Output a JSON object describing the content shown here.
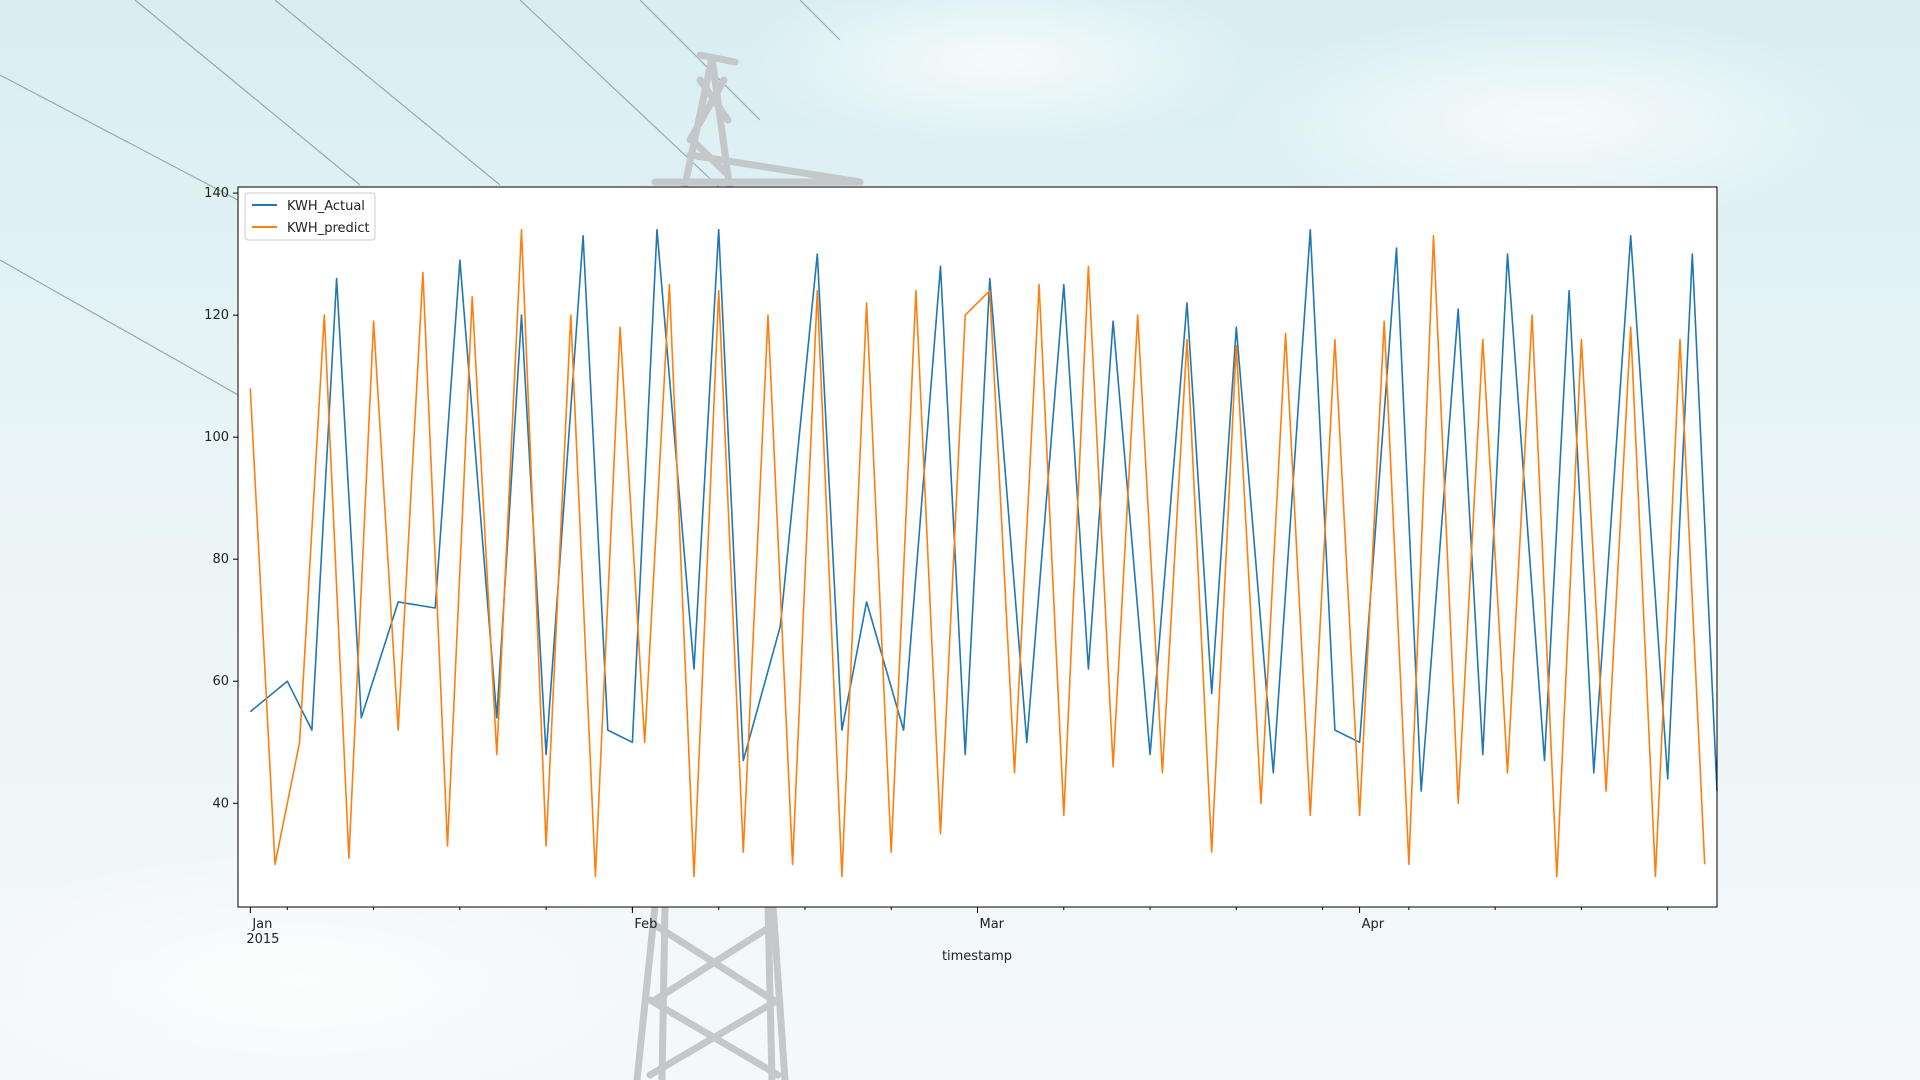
{
  "chart_data": {
    "type": "line",
    "title": "",
    "xlabel": "timestamp",
    "ylabel": "",
    "x_range": [
      "2014-12-31",
      "2015-04-30"
    ],
    "ylim": [
      23,
      141
    ],
    "yticks": [
      40,
      60,
      80,
      100,
      120,
      140
    ],
    "ytick_labels": [
      "40",
      "60",
      "80",
      "100",
      "120",
      "140"
    ],
    "xticks": [
      {
        "date": "2015-01-01",
        "label": "Jan",
        "sublabel": "2015"
      },
      {
        "date": "2015-02-01",
        "label": "Feb",
        "sublabel": ""
      },
      {
        "date": "2015-03-01",
        "label": "Mar",
        "sublabel": ""
      },
      {
        "date": "2015-04-01",
        "label": "Apr",
        "sublabel": ""
      }
    ],
    "legend_position": "top-left",
    "grid": false,
    "series": [
      {
        "name": "KWH_Actual",
        "color": "#1f77b4",
        "x": [
          "2015-01-01",
          "2015-01-04",
          "2015-01-06",
          "2015-01-08",
          "2015-01-10",
          "2015-01-13",
          "2015-01-16",
          "2015-01-18",
          "2015-01-21",
          "2015-01-23",
          "2015-01-25",
          "2015-01-28",
          "2015-01-30",
          "2015-02-01",
          "2015-02-03",
          "2015-02-06",
          "2015-02-08",
          "2015-02-10",
          "2015-02-13",
          "2015-02-16",
          "2015-02-18",
          "2015-02-20",
          "2015-02-23",
          "2015-02-26",
          "2015-02-28",
          "2015-03-02",
          "2015-03-05",
          "2015-03-08",
          "2015-03-10",
          "2015-03-12",
          "2015-03-15",
          "2015-03-18",
          "2015-03-20",
          "2015-03-22",
          "2015-03-25",
          "2015-03-28",
          "2015-03-30",
          "2015-04-01",
          "2015-04-04",
          "2015-04-06",
          "2015-04-09",
          "2015-04-11",
          "2015-04-13",
          "2015-04-16",
          "2015-04-18",
          "2015-04-20",
          "2015-04-23",
          "2015-04-26",
          "2015-04-28",
          "2015-04-30"
        ],
        "values": [
          55,
          60,
          52,
          126,
          54,
          73,
          72,
          129,
          54,
          120,
          48,
          133,
          52,
          50,
          134,
          62,
          134,
          47,
          69,
          130,
          52,
          73,
          52,
          128,
          48,
          126,
          50,
          125,
          62,
          119,
          48,
          122,
          58,
          118,
          45,
          134,
          52,
          50,
          131,
          42,
          121,
          48,
          130,
          47,
          124,
          45,
          133,
          44,
          130,
          42
        ]
      },
      {
        "name": "KWH_predict",
        "color": "#ff7f0e",
        "x": [
          "2015-01-01",
          "2015-01-03",
          "2015-01-05",
          "2015-01-07",
          "2015-01-09",
          "2015-01-11",
          "2015-01-13",
          "2015-01-15",
          "2015-01-17",
          "2015-01-19",
          "2015-01-21",
          "2015-01-23",
          "2015-01-25",
          "2015-01-27",
          "2015-01-29",
          "2015-01-31",
          "2015-02-02",
          "2015-02-04",
          "2015-02-06",
          "2015-02-08",
          "2015-02-10",
          "2015-02-12",
          "2015-02-14",
          "2015-02-16",
          "2015-02-18",
          "2015-02-20",
          "2015-02-22",
          "2015-02-24",
          "2015-02-26",
          "2015-02-28",
          "2015-03-02",
          "2015-03-04",
          "2015-03-06",
          "2015-03-08",
          "2015-03-10",
          "2015-03-12",
          "2015-03-14",
          "2015-03-16",
          "2015-03-18",
          "2015-03-20",
          "2015-03-22",
          "2015-03-24",
          "2015-03-26",
          "2015-03-28",
          "2015-03-30",
          "2015-04-01",
          "2015-04-03",
          "2015-04-05",
          "2015-04-07",
          "2015-04-09",
          "2015-04-11",
          "2015-04-13",
          "2015-04-15",
          "2015-04-17",
          "2015-04-19",
          "2015-04-21",
          "2015-04-23",
          "2015-04-25",
          "2015-04-27",
          "2015-04-29"
        ],
        "values": [
          108,
          30,
          50,
          120,
          31,
          119,
          52,
          127,
          33,
          123,
          48,
          134,
          33,
          120,
          28,
          118,
          50,
          125,
          28,
          124,
          32,
          120,
          30,
          124,
          28,
          122,
          32,
          124,
          35,
          120,
          124,
          45,
          125,
          38,
          128,
          46,
          120,
          45,
          116,
          32,
          115,
          40,
          117,
          38,
          116,
          38,
          119,
          30,
          133,
          40,
          116,
          45,
          120,
          28,
          116,
          42,
          118,
          28,
          116,
          30
        ]
      }
    ]
  }
}
